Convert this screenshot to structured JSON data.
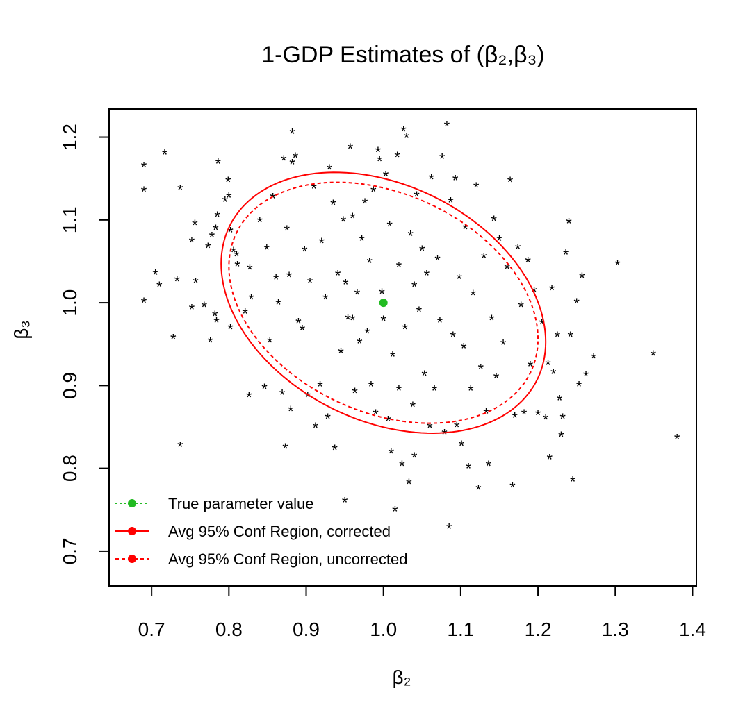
{
  "chart_data": {
    "type": "scatter",
    "title": "1-GDP Estimates of (β₂,β₃)",
    "xlabel": "β₂",
    "ylabel": "β₃",
    "xlim": [
      0.645,
      1.405
    ],
    "ylim": [
      0.658,
      1.234
    ],
    "x_ticks": [
      0.7,
      0.8,
      0.9,
      1.0,
      1.1,
      1.2,
      1.3,
      1.4
    ],
    "x_tick_labels": [
      "0.7",
      "0.8",
      "0.9",
      "1.0",
      "1.1",
      "1.2",
      "1.3",
      "1.4"
    ],
    "y_ticks": [
      0.7,
      0.8,
      0.9,
      1.0,
      1.1,
      1.2
    ],
    "y_tick_labels": [
      "0.7",
      "0.8",
      "0.9",
      "1.0",
      "1.1",
      "1.2"
    ],
    "grid": false,
    "legend_position": "bottom-left",
    "marker_symbol": "*",
    "colors": {
      "points": "#000000",
      "true_value": "#22bb22",
      "region": "#ff0000"
    },
    "true_value": {
      "x": 1.0,
      "y": 1.0
    },
    "legend": [
      {
        "label": "True parameter value",
        "color": "#22bb22",
        "line": "dotted"
      },
      {
        "label": "Avg 95% Conf Region, corrected",
        "color": "#ff0000",
        "line": "solid"
      },
      {
        "label": "Avg 95% Conf Region, uncorrected",
        "color": "#ff0000",
        "line": "dashed"
      }
    ],
    "confidence_regions": [
      {
        "name": "Avg 95% Conf Region, corrected",
        "line": "solid",
        "center": [
          1.0,
          1.0
        ],
        "x_range": [
          0.79,
          1.21
        ],
        "y_range": [
          0.843,
          1.158
        ]
      },
      {
        "name": "Avg 95% Conf Region, uncorrected",
        "line": "dashed",
        "center": [
          1.0,
          1.0
        ],
        "x_range": [
          0.8,
          1.2
        ],
        "y_range": [
          0.855,
          1.146
        ]
      }
    ],
    "series": [
      {
        "name": "1-GDP Estimates",
        "points": [
          [
            0.69,
            1.165
          ],
          [
            0.69,
            1.135
          ],
          [
            0.717,
            1.18
          ],
          [
            0.737,
            1.137
          ],
          [
            0.69,
            1.001
          ],
          [
            0.705,
            1.035
          ],
          [
            0.71,
            1.02
          ],
          [
            0.733,
            1.027
          ],
          [
            0.728,
            0.957
          ],
          [
            0.737,
            0.827
          ],
          [
            0.752,
            1.074
          ],
          [
            0.752,
            0.993
          ],
          [
            0.756,
            1.095
          ],
          [
            0.757,
            1.025
          ],
          [
            0.768,
            0.996
          ],
          [
            0.773,
            1.067
          ],
          [
            0.776,
            0.953
          ],
          [
            0.778,
            1.08
          ],
          [
            0.783,
            1.089
          ],
          [
            0.785,
            1.105
          ],
          [
            0.786,
            1.169
          ],
          [
            0.782,
            0.985
          ],
          [
            0.784,
            0.977
          ],
          [
            0.795,
            1.123
          ],
          [
            0.799,
            1.147
          ],
          [
            0.8,
            1.128
          ],
          [
            0.802,
            1.086
          ],
          [
            0.802,
            0.969
          ],
          [
            0.806,
            1.062
          ],
          [
            0.81,
            1.057
          ],
          [
            0.811,
            1.045
          ],
          [
            0.821,
            0.988
          ],
          [
            0.826,
            0.887
          ],
          [
            0.827,
            1.041
          ],
          [
            0.829,
            1.005
          ],
          [
            0.84,
            1.098
          ],
          [
            0.846,
            0.897
          ],
          [
            0.849,
            1.065
          ],
          [
            0.853,
            0.953
          ],
          [
            0.857,
            1.127
          ],
          [
            0.861,
            1.029
          ],
          [
            0.864,
            0.999
          ],
          [
            0.869,
            0.89
          ],
          [
            0.871,
            1.173
          ],
          [
            0.873,
            0.825
          ],
          [
            0.875,
            1.088
          ],
          [
            0.878,
            1.032
          ],
          [
            0.88,
            0.87
          ],
          [
            0.882,
            1.205
          ],
          [
            0.882,
            1.168
          ],
          [
            0.886,
            1.176
          ],
          [
            0.89,
            0.976
          ],
          [
            0.895,
            0.968
          ],
          [
            0.898,
            1.063
          ],
          [
            0.902,
            0.887
          ],
          [
            0.905,
            1.025
          ],
          [
            0.91,
            1.139
          ],
          [
            0.912,
            0.85
          ],
          [
            0.918,
            0.9
          ],
          [
            0.92,
            1.073
          ],
          [
            0.925,
            1.005
          ],
          [
            0.928,
            0.861
          ],
          [
            0.93,
            1.162
          ],
          [
            0.935,
            1.119
          ],
          [
            0.937,
            0.823
          ],
          [
            0.941,
            1.034
          ],
          [
            0.945,
            0.94
          ],
          [
            0.948,
            1.099
          ],
          [
            0.951,
            1.023
          ],
          [
            0.954,
            0.981
          ],
          [
            0.957,
            1.187
          ],
          [
            0.96,
            1.103
          ],
          [
            0.963,
            0.892
          ],
          [
            0.966,
            1.011
          ],
          [
            0.969,
            0.952
          ],
          [
            0.972,
            1.076
          ],
          [
            0.976,
            1.121
          ],
          [
            0.979,
            0.964
          ],
          [
            0.982,
            1.049
          ],
          [
            0.984,
            0.9
          ],
          [
            0.987,
            1.135
          ],
          [
            0.99,
            0.866
          ],
          [
            0.993,
            1.183
          ],
          [
            0.995,
            1.172
          ],
          [
            0.998,
            1.012
          ],
          [
            1.0,
            0.979
          ],
          [
            1.003,
            1.154
          ],
          [
            1.006,
            0.858
          ],
          [
            1.008,
            1.093
          ],
          [
            1.01,
            0.819
          ],
          [
            1.012,
            0.936
          ],
          [
            1.015,
            0.749
          ],
          [
            1.018,
            1.177
          ],
          [
            1.02,
            1.044
          ],
          [
            1.024,
            0.804
          ],
          [
            1.026,
            1.208
          ],
          [
            1.028,
            0.969
          ],
          [
            1.03,
            1.2
          ],
          [
            1.033,
            0.782
          ],
          [
            1.035,
            1.082
          ],
          [
            1.038,
            0.875
          ],
          [
            1.04,
            0.814
          ],
          [
            1.043,
            1.129
          ],
          [
            1.046,
            0.99
          ],
          [
            1.05,
            1.064
          ],
          [
            1.053,
            0.913
          ],
          [
            1.056,
            1.034
          ],
          [
            1.06,
            0.85
          ],
          [
            1.062,
            1.15
          ],
          [
            1.066,
            0.895
          ],
          [
            1.07,
            1.052
          ],
          [
            1.073,
            0.977
          ],
          [
            1.076,
            1.175
          ],
          [
            1.079,
            0.842
          ],
          [
            1.082,
            1.214
          ],
          [
            1.085,
            0.728
          ],
          [
            1.087,
            1.122
          ],
          [
            1.09,
            0.96
          ],
          [
            1.093,
            1.149
          ],
          [
            1.095,
            0.851
          ],
          [
            1.098,
            1.03
          ],
          [
            1.101,
            0.828
          ],
          [
            1.104,
            0.946
          ],
          [
            1.106,
            1.09
          ],
          [
            1.11,
            0.801
          ],
          [
            1.113,
            0.895
          ],
          [
            1.116,
            1.01
          ],
          [
            1.12,
            1.14
          ],
          [
            1.123,
            0.775
          ],
          [
            1.126,
            0.921
          ],
          [
            1.13,
            1.055
          ],
          [
            1.133,
            0.867
          ],
          [
            1.136,
            0.804
          ],
          [
            1.14,
            0.98
          ],
          [
            1.143,
            1.1
          ],
          [
            1.146,
            0.91
          ],
          [
            1.15,
            1.076
          ],
          [
            1.155,
            0.95
          ],
          [
            1.16,
            1.042
          ],
          [
            1.164,
            1.147
          ],
          [
            1.167,
            0.778
          ],
          [
            1.17,
            0.862
          ],
          [
            1.174,
            1.066
          ],
          [
            1.178,
            0.996
          ],
          [
            1.182,
            0.866
          ],
          [
            1.187,
            1.05
          ],
          [
            1.19,
            0.924
          ],
          [
            1.195,
            1.014
          ],
          [
            1.2,
            0.865
          ],
          [
            1.205,
            0.975
          ],
          [
            1.21,
            0.86
          ],
          [
            1.213,
            0.926
          ],
          [
            1.215,
            0.812
          ],
          [
            1.218,
            1.016
          ],
          [
            1.22,
            0.915
          ],
          [
            1.225,
            0.96
          ],
          [
            1.228,
            0.883
          ],
          [
            1.23,
            0.839
          ],
          [
            1.232,
            0.861
          ],
          [
            1.236,
            1.059
          ],
          [
            1.24,
            1.097
          ],
          [
            1.242,
            0.96
          ],
          [
            1.245,
            0.785
          ],
          [
            1.25,
            1.0
          ],
          [
            1.253,
            0.9
          ],
          [
            1.257,
            1.031
          ],
          [
            1.262,
            0.912
          ],
          [
            1.272,
            0.934
          ],
          [
            1.303,
            1.046
          ],
          [
            1.349,
            0.937
          ],
          [
            1.38,
            0.836
          ],
          [
            0.95,
            0.76
          ],
          [
            1.02,
            0.895
          ],
          [
            1.04,
            1.02
          ],
          [
            0.96,
            0.98
          ]
        ]
      }
    ]
  }
}
